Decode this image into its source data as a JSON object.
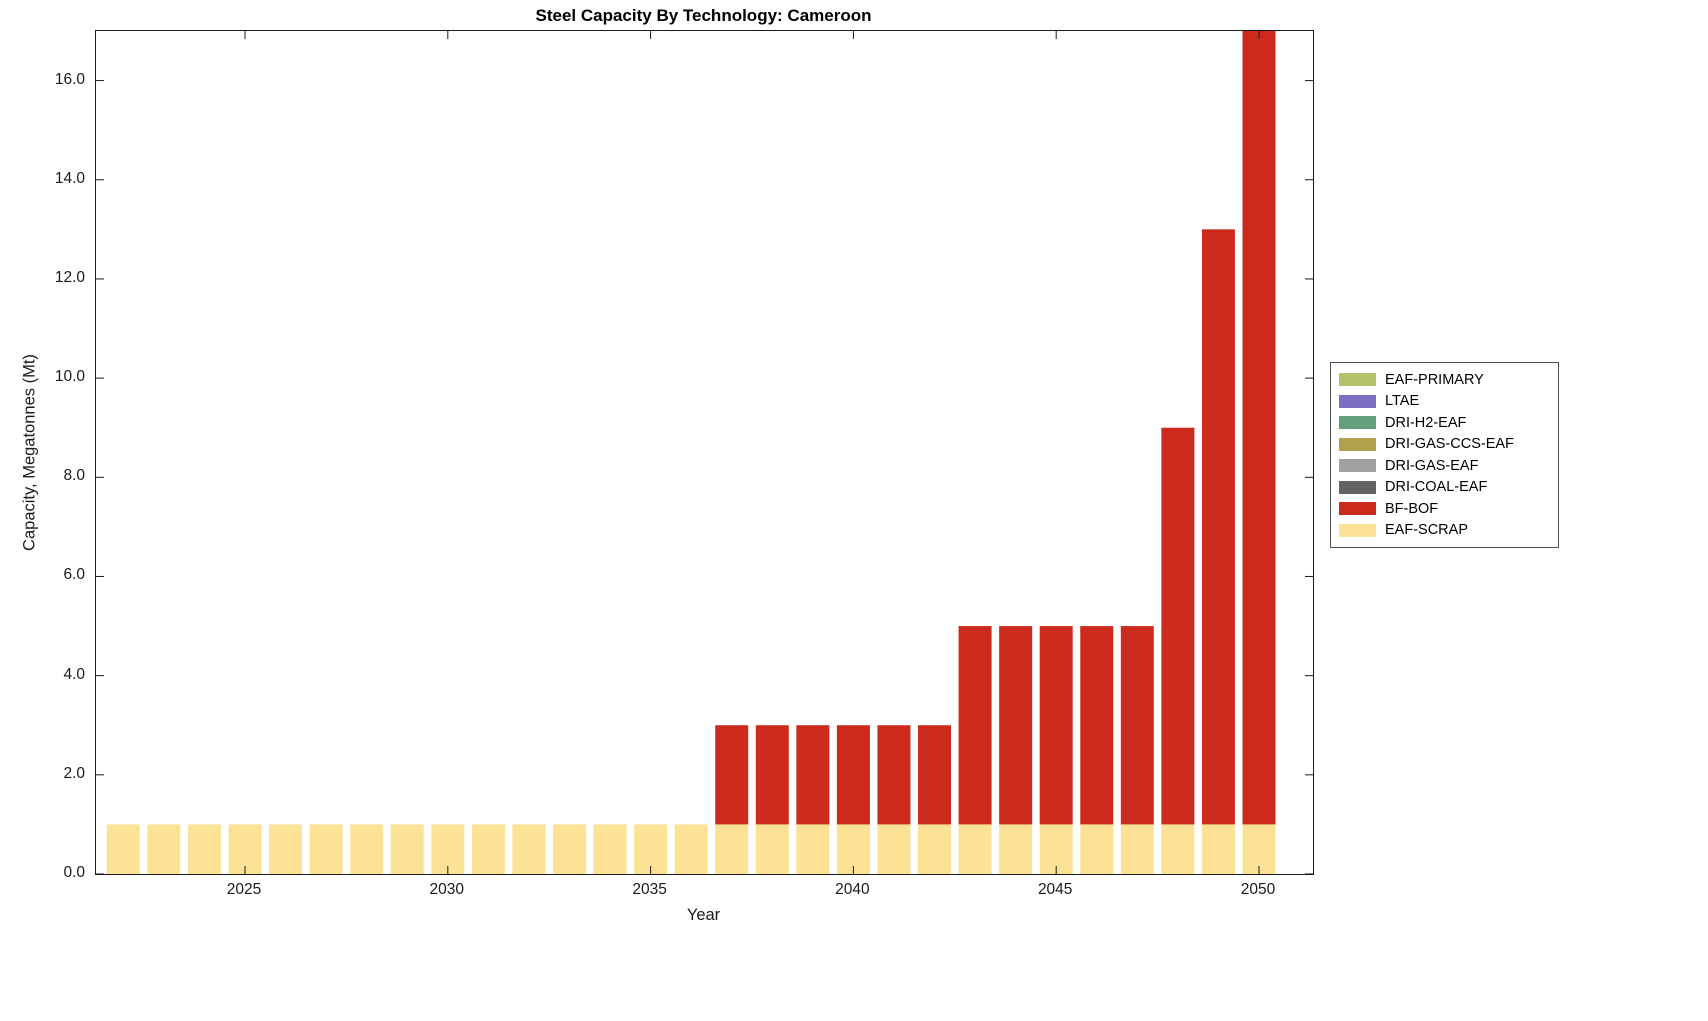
{
  "title": "Steel Capacity By Technology: Cameroon",
  "axes": {
    "xlabel": "Year",
    "ylabel": "Capacity, Megatonnes (Mt)"
  },
  "legend": {
    "entries": [
      {
        "label": "EAF-PRIMARY",
        "color": "#b3c167"
      },
      {
        "label": "LTAE",
        "color": "#7a6fc2"
      },
      {
        "label": "DRI-H2-EAF",
        "color": "#63a17c"
      },
      {
        "label": "DRI-GAS-CCS-EAF",
        "color": "#b1a14c"
      },
      {
        "label": "DRI-GAS-EAF",
        "color": "#a0a0a0"
      },
      {
        "label": "DRI-COAL-EAF",
        "color": "#636363"
      },
      {
        "label": "BF-BOF",
        "color": "#cd2a1e"
      },
      {
        "label": "EAF-SCRAP",
        "color": "#fce295"
      }
    ]
  },
  "chart_data": {
    "type": "bar",
    "stacked": true,
    "title": "Steel Capacity By Technology: Cameroon",
    "xlabel": "Year",
    "ylabel": "Capacity, Megatonnes (Mt)",
    "x": [
      2022,
      2023,
      2024,
      2025,
      2026,
      2027,
      2028,
      2029,
      2030,
      2031,
      2032,
      2033,
      2034,
      2035,
      2036,
      2037,
      2038,
      2039,
      2040,
      2041,
      2042,
      2043,
      2044,
      2045,
      2046,
      2047,
      2048,
      2049,
      2050
    ],
    "series": [
      {
        "name": "EAF-SCRAP",
        "color": "#fce295",
        "values": [
          1,
          1,
          1,
          1,
          1,
          1,
          1,
          1,
          1,
          1,
          1,
          1,
          1,
          1,
          1,
          1,
          1,
          1,
          1,
          1,
          1,
          1,
          1,
          1,
          1,
          1,
          1,
          1,
          1
        ]
      },
      {
        "name": "BF-BOF",
        "color": "#cd2a1e",
        "values": [
          0,
          0,
          0,
          0,
          0,
          0,
          0,
          0,
          0,
          0,
          0,
          0,
          0,
          0,
          0,
          2,
          2,
          2,
          2,
          2,
          2,
          4,
          4,
          4,
          4,
          4,
          8,
          12,
          16
        ]
      }
    ],
    "ylim": [
      0,
      17
    ],
    "yticks": [
      0,
      2,
      4,
      6,
      8,
      10,
      12,
      14,
      16
    ],
    "ytick_labels": [
      "0.0",
      "2.0",
      "4.0",
      "6.0",
      "8.0",
      "10.0",
      "12.0",
      "14.0",
      "16.0"
    ],
    "xticks": [
      2025,
      2030,
      2035,
      2040,
      2045,
      2050
    ],
    "xtick_labels": [
      "2025",
      "2030",
      "2035",
      "2040",
      "2045",
      "2050"
    ],
    "grid": false,
    "legend_position": "right-outside"
  }
}
